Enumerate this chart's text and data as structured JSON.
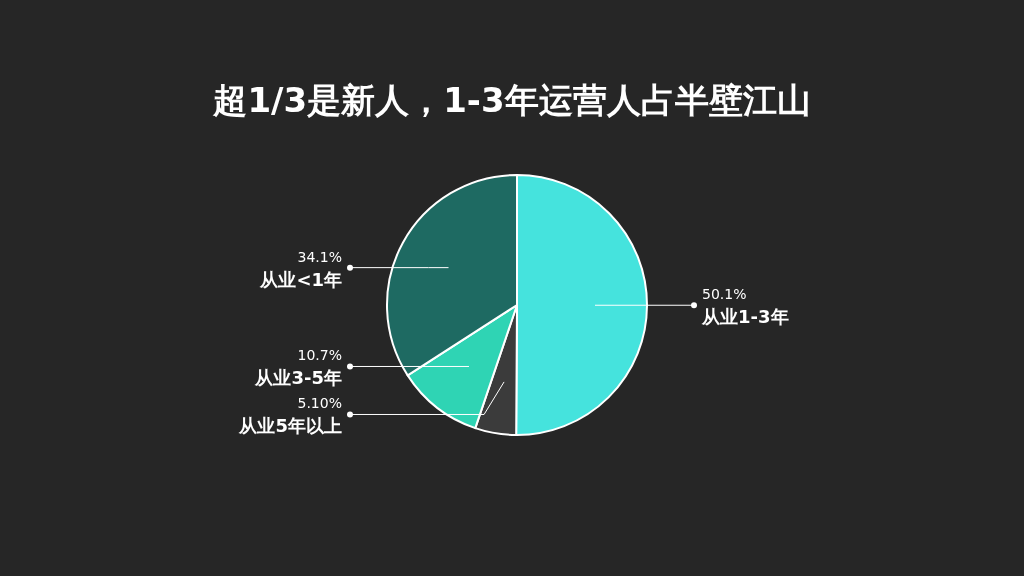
{
  "chart_data": {
    "type": "pie",
    "title": "超1/3是新人，1-3年运营人占半壁江山",
    "categories": [
      "从业1-3年",
      "从业5年以上",
      "从业3-5年",
      "从业<1年"
    ],
    "values": [
      50.1,
      5.1,
      10.7,
      34.1
    ],
    "value_labels": [
      "50.1%",
      "5.10%",
      "10.7%",
      "34.1%"
    ],
    "colors": [
      "#45e3dd",
      "#3b3b3b",
      "#2fd4b4",
      "#1e6a62"
    ]
  }
}
